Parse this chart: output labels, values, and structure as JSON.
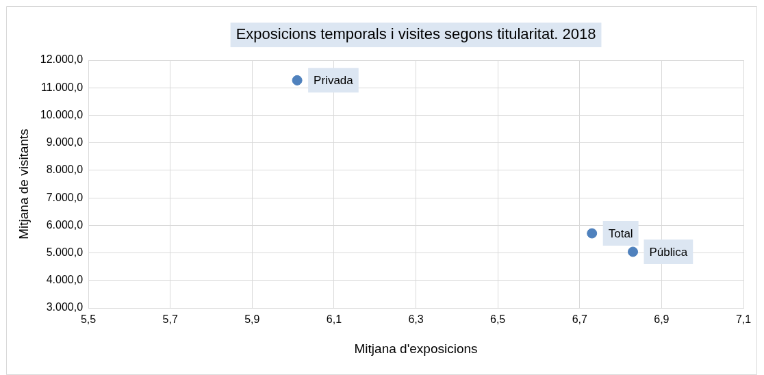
{
  "chart_data": {
    "type": "scatter",
    "title": "Exposicions temporals i visites segons titularitat. 2018",
    "xlabel": "Mitjana d'exposicions",
    "ylabel": "Mitjana de visitants",
    "series": [
      {
        "color": "#4f81bd",
        "x": [
          6.01,
          6.73,
          6.83
        ],
        "values": [
          11270,
          5710,
          5040
        ]
      }
    ],
    "annotations": [
      {
        "text": "Privada",
        "x": 6.01,
        "y": 11270
      },
      {
        "text": "Total",
        "x": 6.73,
        "y": 5710
      },
      {
        "text": "Pública",
        "x": 6.83,
        "y": 5040
      }
    ],
    "xlim": [
      5.5,
      7.1
    ],
    "xticks": [
      {
        "value": 5.5,
        "label": "5,5"
      },
      {
        "value": 5.7,
        "label": "5,7"
      },
      {
        "value": 5.9,
        "label": "5,9"
      },
      {
        "value": 6.1,
        "label": "6,1"
      },
      {
        "value": 6.3,
        "label": "6,3"
      },
      {
        "value": 6.5,
        "label": "6,5"
      },
      {
        "value": 6.7,
        "label": "6,7"
      },
      {
        "value": 6.9,
        "label": "6,9"
      },
      {
        "value": 7.1,
        "label": "7,1"
      }
    ],
    "ylim": [
      3000,
      12000
    ],
    "yticks": [
      {
        "value": 3000,
        "label": "3.000,0"
      },
      {
        "value": 4000,
        "label": "4.000,0"
      },
      {
        "value": 5000,
        "label": "5.000,0"
      },
      {
        "value": 6000,
        "label": "6.000,0"
      },
      {
        "value": 7000,
        "label": "7.000,0"
      },
      {
        "value": 8000,
        "label": "8.000,0"
      },
      {
        "value": 9000,
        "label": "9.000,0"
      },
      {
        "value": 10000,
        "label": "10.000,0"
      },
      {
        "value": 11000,
        "label": "11.000,0"
      },
      {
        "value": 12000,
        "label": "12.000,0"
      }
    ],
    "grid": true,
    "legend": false,
    "marker": "circle"
  }
}
